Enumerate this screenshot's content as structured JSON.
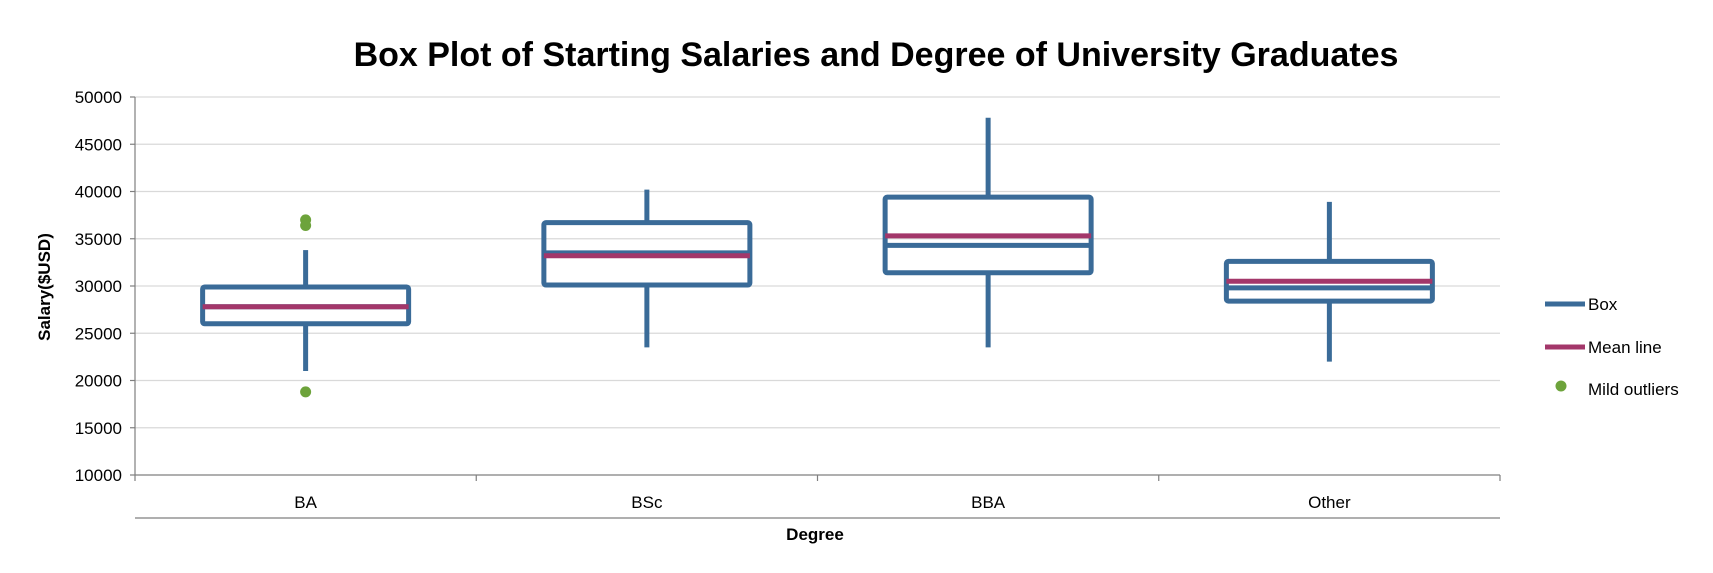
{
  "chart_data": {
    "type": "box",
    "title": "Box Plot of Starting Salaries and Degree of University Graduates",
    "xlabel": "Degree",
    "ylabel": "Salary($USD)",
    "ylim": [
      10000,
      50000
    ],
    "yticks": [
      10000,
      15000,
      20000,
      25000,
      30000,
      35000,
      40000,
      45000,
      50000
    ],
    "grid": true,
    "legend_position": "right",
    "categories": [
      "BA",
      "BSc",
      "BBA",
      "Other"
    ],
    "boxes": [
      {
        "category": "BA",
        "whisker_low": 21000,
        "q1": 26000,
        "median": 27800,
        "q3": 29900,
        "whisker_high": 33800,
        "mean": 27800,
        "outliers": [
          37000,
          36400,
          18800
        ]
      },
      {
        "category": "BSc",
        "whisker_low": 23500,
        "q1": 30100,
        "median": 33500,
        "q3": 36700,
        "whisker_high": 40200,
        "mean": 33200,
        "outliers": []
      },
      {
        "category": "BBA",
        "whisker_low": 23500,
        "q1": 31400,
        "median": 34300,
        "q3": 39400,
        "whisker_high": 47800,
        "mean": 35300,
        "outliers": []
      },
      {
        "category": "Other",
        "whisker_low": 22000,
        "q1": 28400,
        "median": 29800,
        "q3": 32600,
        "whisker_high": 38900,
        "mean": 30500,
        "outliers": []
      }
    ],
    "legend": [
      {
        "key": "box",
        "label": "Box"
      },
      {
        "key": "mean",
        "label": "Mean line"
      },
      {
        "key": "outlier",
        "label": "Mild outliers"
      }
    ],
    "colors": {
      "box": "#3A6B98",
      "mean": "#A3376A",
      "outlier": "#6DA33B",
      "grid": "#D9D9D9",
      "axis": "#7F7F7F"
    }
  }
}
